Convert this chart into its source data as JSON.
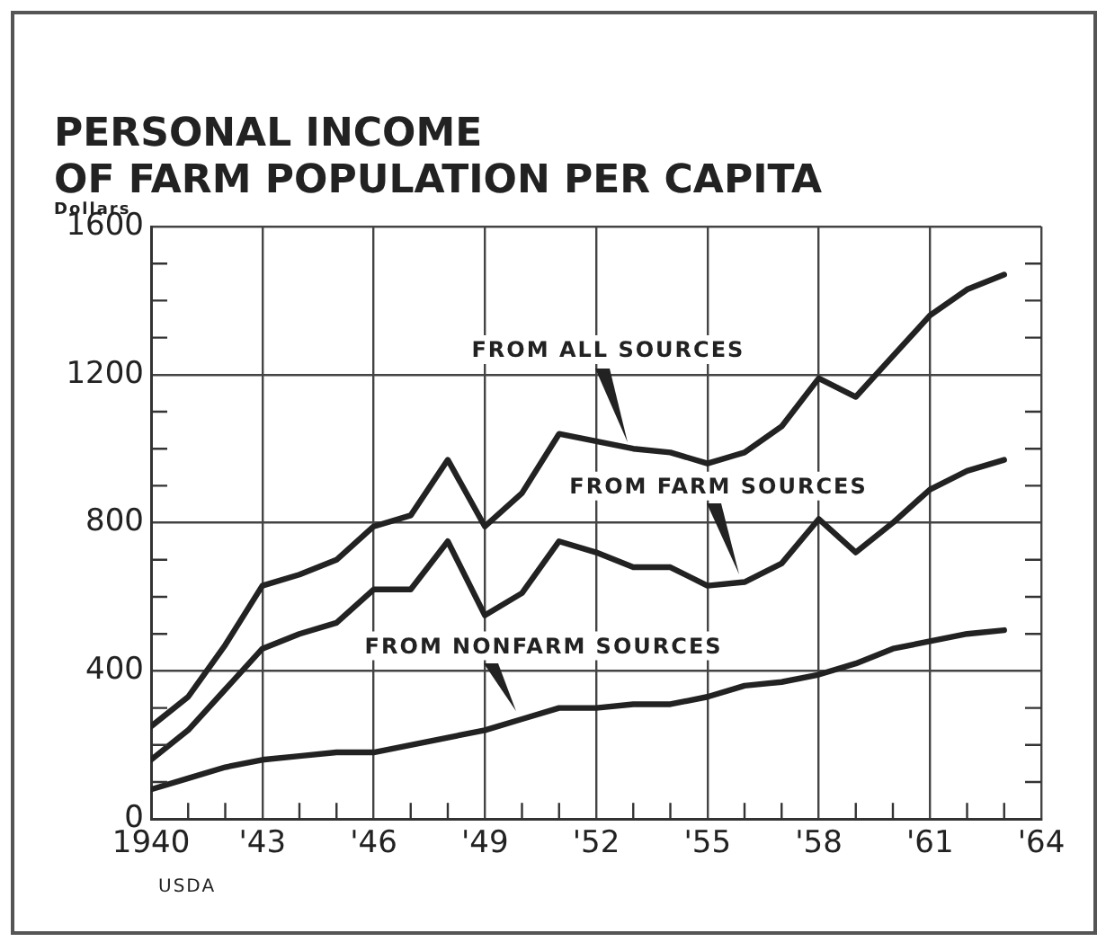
{
  "chart_data": {
    "type": "line",
    "title": "PERSONAL INCOME\nOF FARM POPULATION PER CAPITA",
    "ylabel": "Dollars",
    "annotations": [
      "USDA"
    ],
    "x": [
      1940,
      1941,
      1942,
      1943,
      1944,
      1945,
      1946,
      1947,
      1948,
      1949,
      1950,
      1951,
      1952,
      1953,
      1954,
      1955,
      1956,
      1957,
      1958,
      1959,
      1960,
      1961,
      1962,
      1963
    ],
    "series": [
      {
        "name": "FROM ALL SOURCES",
        "color": "#222222",
        "values": [
          250,
          330,
          470,
          630,
          660,
          700,
          790,
          820,
          970,
          790,
          880,
          1040,
          1020,
          1000,
          990,
          960,
          990,
          1060,
          1190,
          1140,
          1250,
          1360,
          1430,
          1470
        ]
      },
      {
        "name": "FROM FARM SOURCES",
        "color": "#222222",
        "values": [
          160,
          240,
          350,
          460,
          500,
          530,
          620,
          620,
          750,
          550,
          610,
          750,
          720,
          680,
          680,
          630,
          640,
          690,
          810,
          720,
          800,
          890,
          940,
          970
        ]
      },
      {
        "name": "FROM NONFARM SOURCES",
        "color": "#222222",
        "values": [
          80,
          110,
          140,
          160,
          170,
          180,
          180,
          200,
          220,
          240,
          270,
          300,
          300,
          310,
          310,
          330,
          360,
          370,
          390,
          420,
          460,
          480,
          500,
          510
        ]
      }
    ],
    "xlim": [
      1940,
      1964
    ],
    "xticks": [
      1940,
      {
        "value": 1941,
        "label": null
      },
      {
        "value": 1942,
        "label": null
      },
      {
        "value": 1943,
        "label": "'43"
      },
      {
        "value": 1944,
        "label": null
      },
      {
        "value": 1945,
        "label": null
      },
      {
        "value": 1946,
        "label": "'46"
      },
      {
        "value": 1947,
        "label": null
      },
      {
        "value": 1948,
        "label": null
      },
      {
        "value": 1949,
        "label": "'49"
      },
      {
        "value": 1950,
        "label": null
      },
      {
        "value": 1951,
        "label": null
      },
      {
        "value": 1952,
        "label": "'52"
      },
      {
        "value": 1953,
        "label": null
      },
      {
        "value": 1954,
        "label": null
      },
      {
        "value": 1955,
        "label": "'55"
      },
      {
        "value": 1956,
        "label": null
      },
      {
        "value": 1957,
        "label": null
      },
      {
        "value": 1958,
        "label": "'58"
      },
      {
        "value": 1959,
        "label": null
      },
      {
        "value": 1960,
        "label": null
      },
      {
        "value": 1961,
        "label": "'61"
      },
      {
        "value": 1962,
        "label": null
      },
      {
        "value": 1963,
        "label": null
      },
      {
        "value": 1964,
        "label": "'64"
      }
    ],
    "ylim": [
      0,
      1600
    ],
    "yticks": [
      0,
      {
        "value": 100,
        "label": null
      },
      {
        "value": 200,
        "label": null
      },
      {
        "value": 300,
        "label": null
      },
      400,
      {
        "value": 500,
        "label": null
      },
      {
        "value": 600,
        "label": null
      },
      {
        "value": 700,
        "label": null
      },
      800,
      {
        "value": 900,
        "label": null
      },
      {
        "value": 1000,
        "label": null
      },
      {
        "value": 1100,
        "label": null
      },
      1200,
      {
        "value": 1300,
        "label": null
      },
      {
        "value": 1400,
        "label": null
      },
      {
        "value": 1500,
        "label": null
      },
      1600
    ],
    "grid": true,
    "legend": false,
    "marker": "none",
    "line_style": "solid"
  }
}
